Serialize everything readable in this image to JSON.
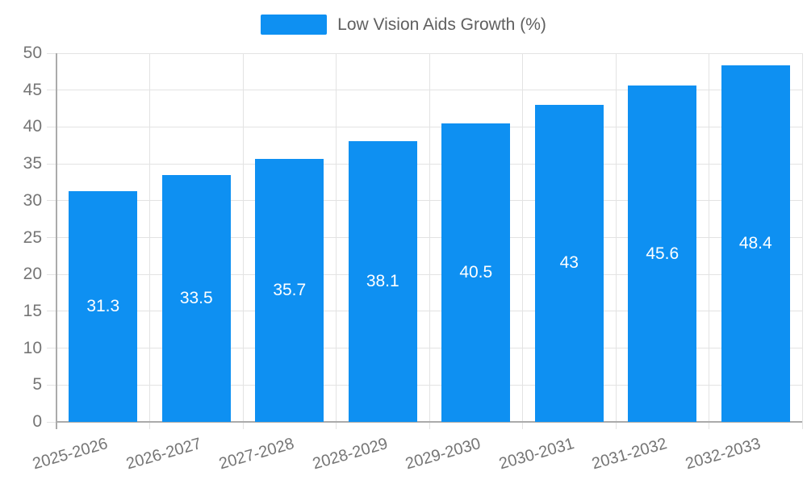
{
  "chart_data": {
    "type": "bar",
    "legend": {
      "label": "Low Vision Aids Growth (%)",
      "position": "top-center"
    },
    "categories": [
      "2025-2026",
      "2026-2027",
      "2027-2028",
      "2028-2029",
      "2029-2030",
      "2030-2031",
      "2031-2032",
      "2032-2033"
    ],
    "values": [
      31.3,
      33.5,
      35.7,
      38.1,
      40.5,
      43,
      45.6,
      48.4
    ],
    "ylim": [
      0,
      50
    ],
    "yticks": [
      0,
      5,
      10,
      15,
      20,
      25,
      30,
      35,
      40,
      45,
      50
    ],
    "grid": true,
    "value_label_position": "inside-middle",
    "x_label_rotation_deg": -16,
    "colors": {
      "bar": "#0e90f2",
      "value_label": "#ffffff",
      "axis_line": "#ababab",
      "grid_line": "#e3e3e3",
      "tick_line": "#d6d6d6",
      "tick_label": "#757575",
      "legend_text": "#5f5f5f",
      "background": "#ffffff"
    }
  }
}
